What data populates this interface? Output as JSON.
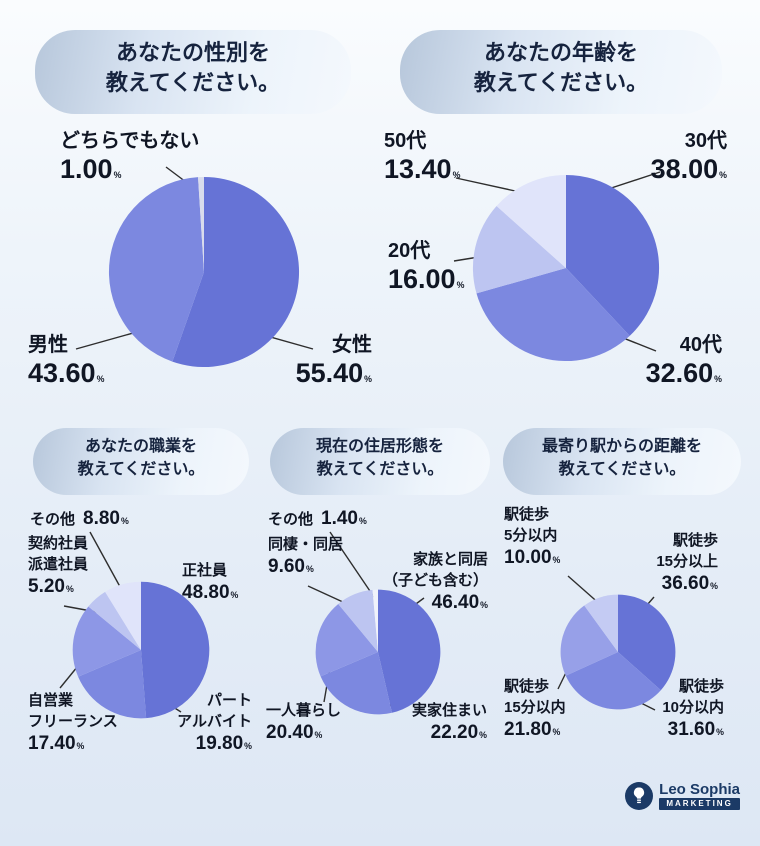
{
  "percent_mark": "%",
  "charts": [
    {
      "id": "gender",
      "title": "あなたの性別を教えてください。",
      "title_lines": [
        "あなたの性別を",
        "教えてください。"
      ],
      "chart_data": {
        "type": "pie",
        "start_angle_deg": -90,
        "direction": "clockwise",
        "slices": [
          {
            "label": "女性",
            "label_lines": [
              "女性"
            ],
            "value": 55.4,
            "display": "55.40",
            "color": "#6673d6"
          },
          {
            "label": "男性",
            "label_lines": [
              "男性"
            ],
            "value": 43.6,
            "display": "43.60",
            "color": "#7c88e0"
          },
          {
            "label": "どちらでもない",
            "label_lines": [
              "どちらでもない"
            ],
            "value": 1.0,
            "display": "1.00",
            "color": "#d9dcec"
          }
        ]
      }
    },
    {
      "id": "age",
      "title": "あなたの年齢を教えてください。",
      "title_lines": [
        "あなたの年齢を",
        "教えてください。"
      ],
      "chart_data": {
        "type": "pie",
        "start_angle_deg": -90,
        "direction": "clockwise",
        "slices": [
          {
            "label": "30代",
            "label_lines": [
              "30代"
            ],
            "value": 38.0,
            "display": "38.00",
            "color": "#6673d6"
          },
          {
            "label": "40代",
            "label_lines": [
              "40代"
            ],
            "value": 32.6,
            "display": "32.60",
            "color": "#7c88e0"
          },
          {
            "label": "20代",
            "label_lines": [
              "20代"
            ],
            "value": 16.0,
            "display": "16.00",
            "color": "#bdc5f1"
          },
          {
            "label": "50代",
            "label_lines": [
              "50代"
            ],
            "value": 13.4,
            "display": "13.40",
            "color": "#e0e4fa"
          }
        ]
      }
    },
    {
      "id": "occupation",
      "title": "あなたの職業を教えてください。",
      "title_lines": [
        "あなたの職業を",
        "教えてください。"
      ],
      "chart_data": {
        "type": "pie",
        "start_angle_deg": -90,
        "direction": "clockwise",
        "slices": [
          {
            "label": "正社員",
            "label_lines": [
              "正社員"
            ],
            "value": 48.8,
            "display": "48.80",
            "color": "#6673d6"
          },
          {
            "label": "パート・アルバイト",
            "label_lines": [
              "パート",
              "アルバイト"
            ],
            "value": 19.8,
            "display": "19.80",
            "color": "#7c88e0"
          },
          {
            "label": "自営業・フリーランス",
            "label_lines": [
              "自営業",
              "フリーランス"
            ],
            "value": 17.4,
            "display": "17.40",
            "color": "#8d97e6"
          },
          {
            "label": "契約社員・派遣社員",
            "label_lines": [
              "契約社員",
              "派遣社員"
            ],
            "value": 5.2,
            "display": "5.20",
            "color": "#bdc5f1"
          },
          {
            "label": "その他",
            "label_lines": [
              "その他"
            ],
            "value": 8.8,
            "display": "8.80",
            "color": "#e0e4fa"
          }
        ]
      }
    },
    {
      "id": "housing",
      "title": "現在の住居形態を教えてください。",
      "title_lines": [
        "現在の住居形態を",
        "教えてください。"
      ],
      "chart_data": {
        "type": "pie",
        "start_angle_deg": -90,
        "direction": "clockwise",
        "slices": [
          {
            "label": "家族と同居（子ども含む）",
            "label_lines": [
              "家族と同居",
              "（子ども含む）"
            ],
            "value": 46.4,
            "display": "46.40",
            "color": "#6673d6"
          },
          {
            "label": "実家住まい",
            "label_lines": [
              "実家住まい"
            ],
            "value": 22.2,
            "display": "22.20",
            "color": "#7c88e0"
          },
          {
            "label": "一人暮らし",
            "label_lines": [
              "一人暮らし"
            ],
            "value": 20.4,
            "display": "20.40",
            "color": "#8d97e6"
          },
          {
            "label": "同棲・同居",
            "label_lines": [
              "同棲・同居"
            ],
            "value": 9.6,
            "display": "9.60",
            "color": "#bdc5f1"
          },
          {
            "label": "その他",
            "label_lines": [
              "その他"
            ],
            "value": 1.4,
            "display": "1.40",
            "color": "#f0f2fb"
          }
        ]
      }
    },
    {
      "id": "station-distance",
      "title": "最寄り駅からの距離を教えてください。",
      "title_lines": [
        "最寄り駅からの距離を",
        "教えてください。"
      ],
      "chart_data": {
        "type": "pie",
        "start_angle_deg": -90,
        "direction": "clockwise",
        "slices": [
          {
            "label": "駅徒歩15分以上",
            "label_lines": [
              "駅徒歩",
              "15分以上"
            ],
            "value": 36.6,
            "display": "36.60",
            "color": "#6673d6"
          },
          {
            "label": "駅徒歩10分以内",
            "label_lines": [
              "駅徒歩",
              "10分以内"
            ],
            "value": 31.6,
            "display": "31.60",
            "color": "#7c88e0"
          },
          {
            "label": "駅徒歩15分以内",
            "label_lines": [
              "駅徒歩",
              "15分以内"
            ],
            "value": 21.8,
            "display": "21.80",
            "color": "#97a0e8"
          },
          {
            "label": "駅徒歩5分以内",
            "label_lines": [
              "駅徒歩",
              "5分以内"
            ],
            "value": 10.0,
            "display": "10.00",
            "color": "#c4cbf3"
          }
        ]
      }
    }
  ],
  "logo": {
    "brand": "Leo Sophia",
    "badge": "MARKETING"
  }
}
